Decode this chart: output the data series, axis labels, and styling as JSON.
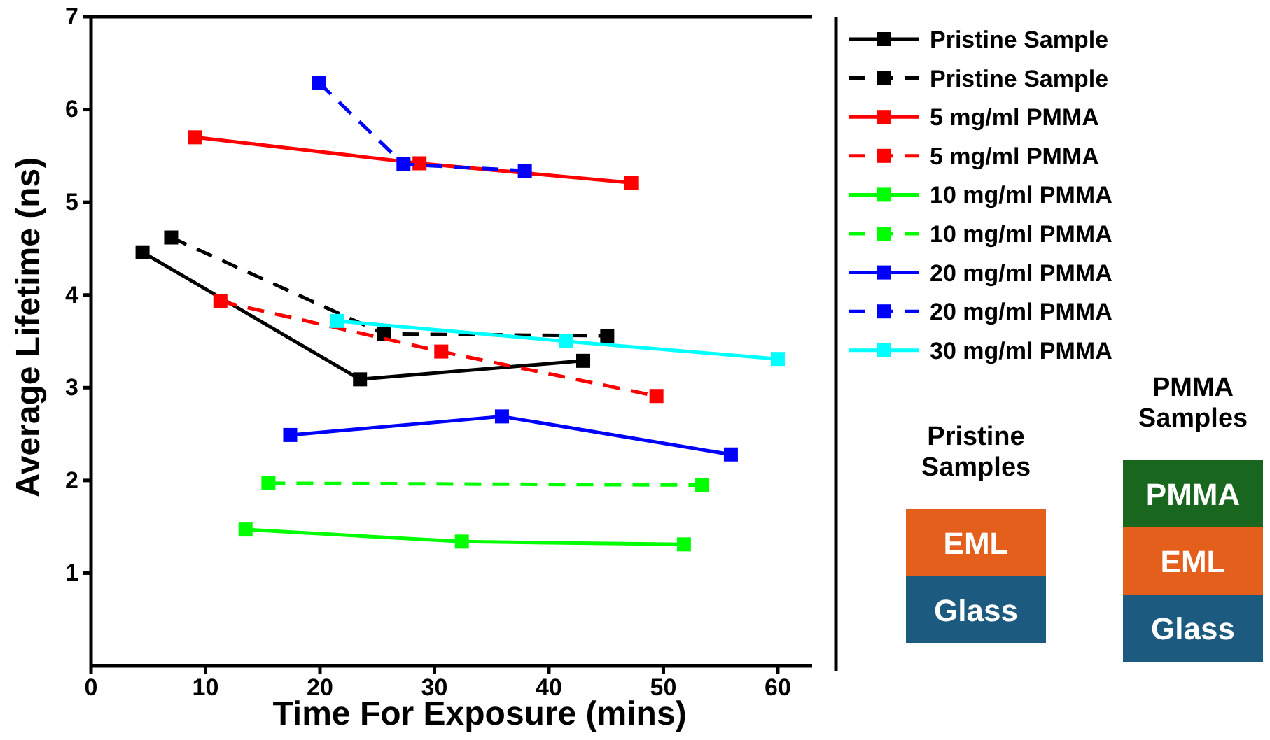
{
  "chart_data": {
    "type": "line",
    "xlabel": "Time For Exposure (mins)",
    "ylabel": "Average Lifetime (ns)",
    "xlim": [
      0,
      63
    ],
    "xticks": [
      0,
      10,
      20,
      30,
      40,
      50,
      60
    ],
    "ylim": [
      0,
      7
    ],
    "yticks": [
      1,
      2,
      3,
      4,
      5,
      6,
      7
    ],
    "marker": "square",
    "legend": "right",
    "grid": false,
    "series": [
      {
        "name": "Pristine Sample",
        "color": "#000000",
        "line_style": "solid",
        "x": [
          4.5,
          23.5,
          43
        ],
        "values": [
          4.46,
          3.09,
          3.29
        ]
      },
      {
        "name": "Pristine Sample",
        "color": "#000000",
        "line_style": "dashed",
        "x": [
          7,
          25.6,
          45.1
        ],
        "values": [
          4.62,
          3.58,
          3.56
        ]
      },
      {
        "name": "5 mg/ml PMMA",
        "color": "#ff0000",
        "line_style": "solid",
        "x": [
          9.1,
          28.7,
          47.2
        ],
        "values": [
          5.7,
          5.42,
          5.21
        ]
      },
      {
        "name": "5 mg/ml PMMA",
        "color": "#ff0000",
        "line_style": "dashed",
        "x": [
          11.3,
          30.6,
          49.4
        ],
        "values": [
          3.93,
          3.39,
          2.91
        ]
      },
      {
        "name": "10 mg/ml PMMA",
        "color": "#00ff00",
        "line_style": "solid",
        "x": [
          13.5,
          32.4,
          51.8
        ],
        "values": [
          1.47,
          1.34,
          1.31
        ]
      },
      {
        "name": "10 mg/ml PMMA",
        "color": "#00ff00",
        "line_style": "dashed",
        "x": [
          15.5,
          53.4
        ],
        "values": [
          1.97,
          1.95
        ]
      },
      {
        "name": "20 mg/ml PMMA",
        "color": "#0000ff",
        "line_style": "solid",
        "x": [
          17.4,
          35.9,
          55.9
        ],
        "values": [
          2.49,
          2.69,
          2.28
        ]
      },
      {
        "name": "20 mg/ml PMMA",
        "color": "#0000ff",
        "line_style": "dashed",
        "x": [
          19.9,
          27.3,
          37.9
        ],
        "values": [
          6.29,
          5.41,
          5.34
        ]
      },
      {
        "name": "30 mg/ml PMMA",
        "color": "#00ffff",
        "line_style": "solid",
        "x": [
          21.5,
          41.5,
          60
        ],
        "values": [
          3.72,
          3.5,
          3.31
        ]
      }
    ],
    "annotations": [
      "Pristine Samples",
      "EML",
      "Glass",
      "PMMA Samples",
      "PMMA",
      "EML",
      "Glass"
    ]
  }
}
